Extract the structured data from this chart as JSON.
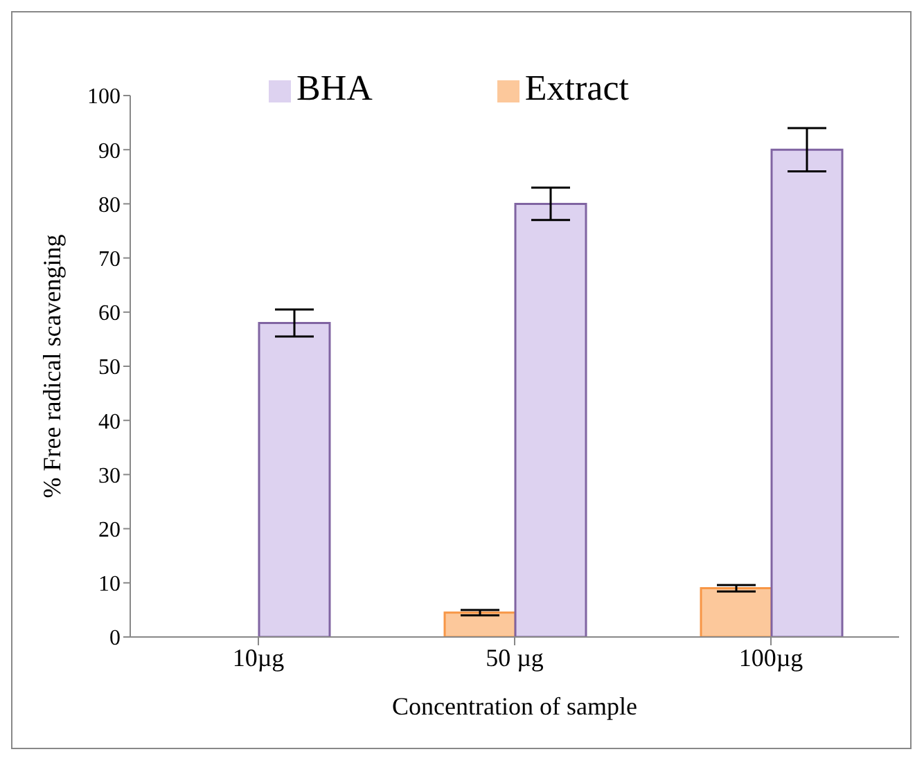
{
  "chart_data": {
    "type": "bar",
    "xlabel": "Concentration of sample",
    "ylabel": "% Free radical scavenging",
    "categories": [
      "10µg",
      "50 µg",
      "100µg"
    ],
    "series": [
      {
        "name": "Extract",
        "color": "#fcc89b",
        "values": [
          0,
          4.5,
          9
        ],
        "errors": [
          null,
          0.5,
          0.6
        ]
      },
      {
        "name": "BHA",
        "color": "#ddd2f0",
        "values": [
          58,
          80,
          90
        ],
        "errors": [
          2.5,
          3,
          4
        ]
      }
    ],
    "ylim": [
      0,
      100
    ],
    "yticks": [
      0,
      10,
      20,
      30,
      40,
      50,
      60,
      70,
      80,
      90,
      100
    ],
    "grid": false,
    "legend": "top"
  }
}
